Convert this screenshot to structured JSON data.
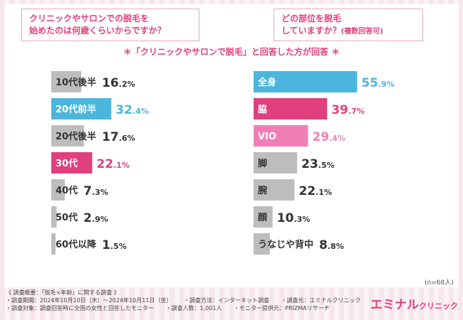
{
  "questions": {
    "left": [
      "クリニックやサロンでの脱毛を",
      "始めたのは何歳くらいからですか？"
    ],
    "right_main": "どの部位を脱毛",
    "right_line2": "していますか？",
    "right_note": "(複数回答可)"
  },
  "subtitle": "＊「クリニックやサロンで脱毛」と回答した方が回答 ＊",
  "n_note": "(n=68人)",
  "footer": {
    "line1": [
      "《 調査概要：「脱毛×年齢」に関する調査 》"
    ],
    "line2": [
      "・調査期間：2024年10月10日（木）〜2024年10月11日（金）",
      "・調査方法：インターネット調査",
      "・調査元：エミナルクリニック"
    ],
    "line3": [
      "・調査対象：調査回答時に全国の女性と回答したモニター",
      "・調査人数：1,001人",
      "・モニター提供元：PRIZMAリサーチ"
    ]
  },
  "logo": {
    "main": "エミナル",
    "sub": "クリニック"
  },
  "colors": {
    "gray": "#bdbdbd",
    "blue": "#4bb6dd",
    "pink": "#e0407e",
    "light_pink": "#f07fb5",
    "text_dark": "#333333"
  },
  "chart_data": [
    {
      "type": "bar",
      "orientation": "horizontal",
      "title": "クリニックやサロンでの脱毛を始めたのは何歳くらいからですか？",
      "unit": "%",
      "xlim": [
        0,
        100
      ],
      "categories": [
        "10代後半",
        "20代前半",
        "20代後半",
        "30代",
        "40代",
        "50代",
        "60代以降"
      ],
      "values": [
        16.2,
        32.4,
        17.6,
        22.1,
        7.3,
        2.9,
        1.5
      ],
      "value_labels": [
        {
          "int": "16",
          "dec": ".2%"
        },
        {
          "int": "32",
          "dec": ".4%"
        },
        {
          "int": "17",
          "dec": ".6%"
        },
        {
          "int": "22",
          "dec": ".1%"
        },
        {
          "int": "7",
          "dec": ".3%"
        },
        {
          "int": "2",
          "dec": ".9%"
        },
        {
          "int": "1",
          "dec": ".5%"
        }
      ],
      "highlight": [
        "gray",
        "blue",
        "gray",
        "pink",
        "gray",
        "gray",
        "gray"
      ]
    },
    {
      "type": "bar",
      "orientation": "horizontal",
      "title": "どの部位を脱毛していますか？(複数回答可)",
      "unit": "%",
      "xlim": [
        0,
        100
      ],
      "categories": [
        "全身",
        "脇",
        "VIO",
        "脚",
        "腕",
        "顔",
        "うなじや背中"
      ],
      "values": [
        55.9,
        39.7,
        29.4,
        23.5,
        22.1,
        10.3,
        8.8
      ],
      "value_labels": [
        {
          "int": "55",
          "dec": ".9%"
        },
        {
          "int": "39",
          "dec": ".7%"
        },
        {
          "int": "29",
          "dec": ".4%"
        },
        {
          "int": "23",
          "dec": ".5%"
        },
        {
          "int": "22",
          "dec": ".1%"
        },
        {
          "int": "10",
          "dec": ".3%"
        },
        {
          "int": "8",
          "dec": ".8%"
        }
      ],
      "highlight": [
        "blue",
        "pink",
        "light_pink",
        "gray",
        "gray",
        "gray",
        "gray"
      ]
    }
  ]
}
